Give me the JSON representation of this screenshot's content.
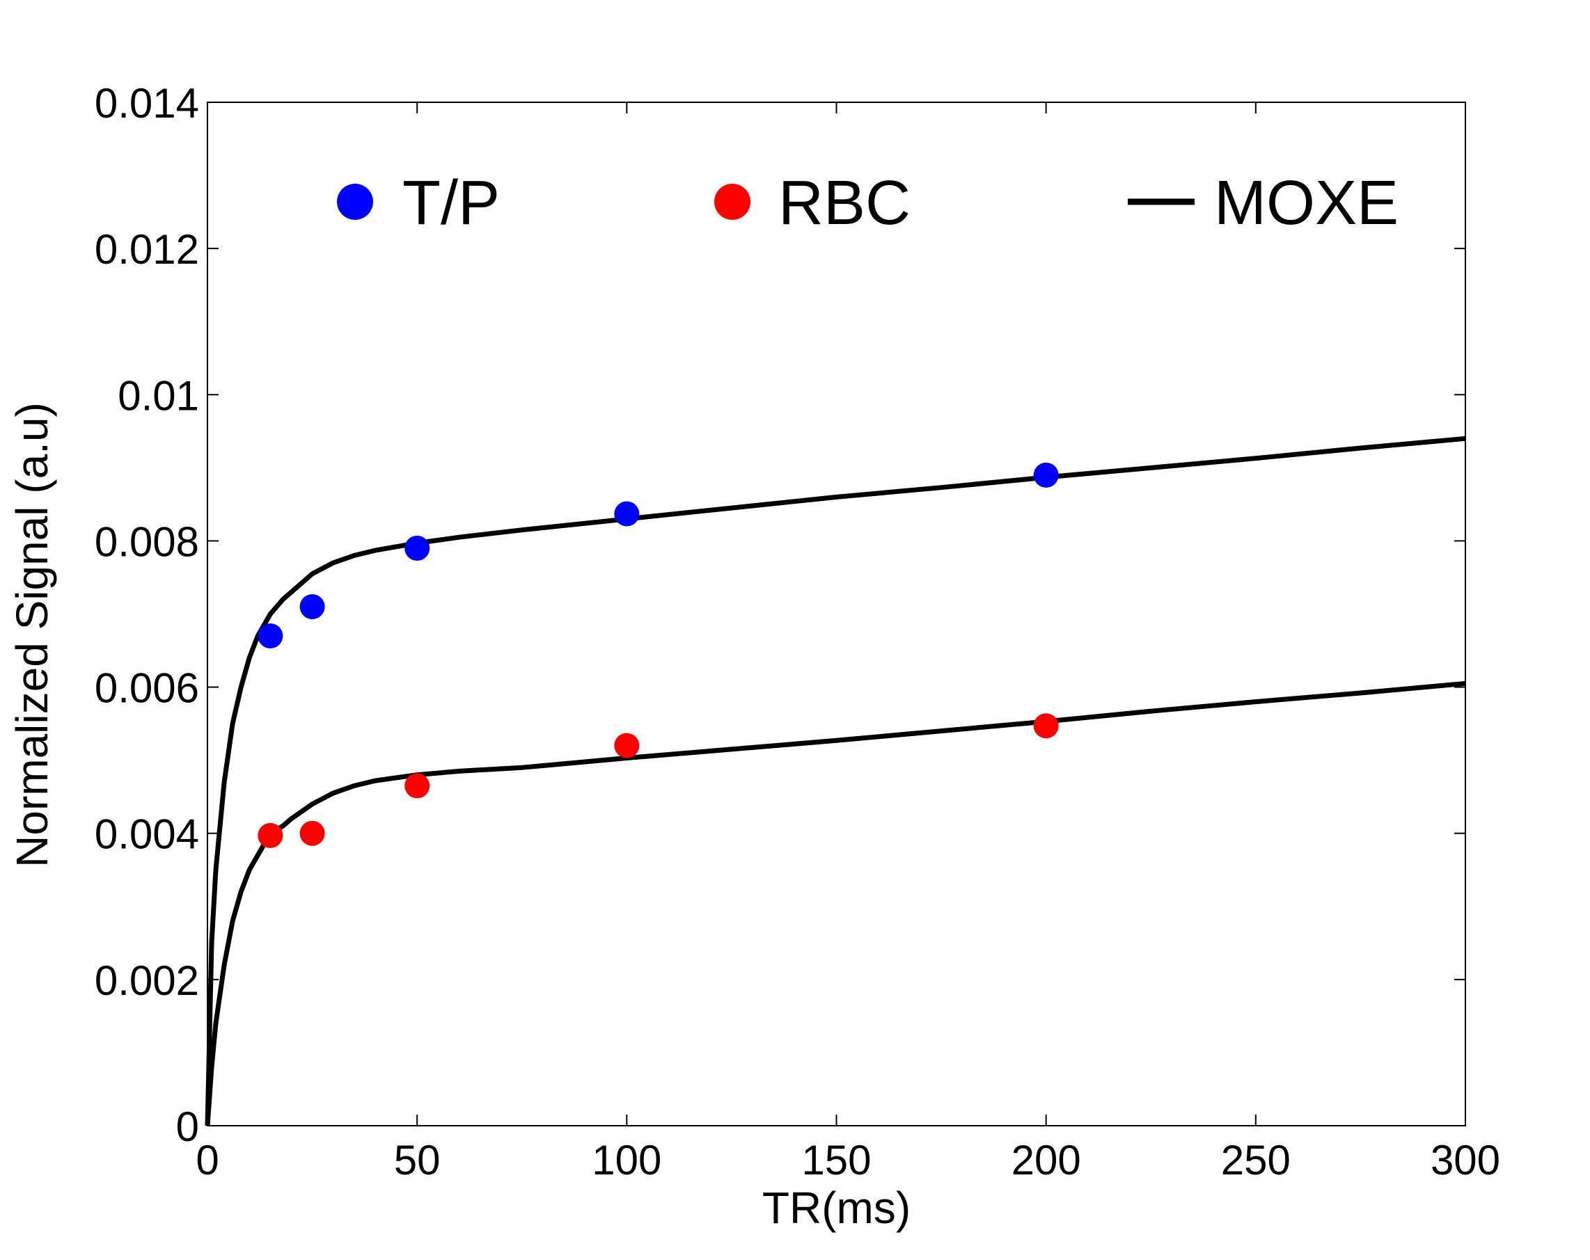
{
  "chart_data": {
    "type": "scatter",
    "xlabel": "TR(ms)",
    "ylabel": "Normalized Signal (a.u)",
    "xlim": [
      0,
      300
    ],
    "ylim": [
      0,
      0.014
    ],
    "x_ticks": [
      0,
      50,
      100,
      150,
      200,
      250,
      300
    ],
    "x_tick_labels": [
      "0",
      "50",
      "100",
      "150",
      "200",
      "250",
      "300"
    ],
    "y_ticks": [
      0,
      0.002,
      0.004,
      0.006,
      0.008,
      0.01,
      0.012,
      0.014
    ],
    "y_tick_labels": [
      "0",
      "0.002",
      "0.004",
      "0.006",
      "0.008",
      "0.01",
      "0.012",
      "0.014"
    ],
    "grid": false,
    "legend_position": "top",
    "series": [
      {
        "name": "T/P",
        "kind": "points",
        "color": "#0000ff",
        "x": [
          15,
          25,
          50,
          100,
          200
        ],
        "y": [
          0.0067,
          0.0071,
          0.0079,
          0.00837,
          0.0089
        ]
      },
      {
        "name": "RBC",
        "kind": "points",
        "color": "#ff0000",
        "x": [
          15,
          25,
          50,
          100,
          200
        ],
        "y": [
          0.00397,
          0.004,
          0.00465,
          0.0052,
          0.00547
        ]
      },
      {
        "name": "MOXE",
        "kind": "line",
        "color": "#000000",
        "curves": [
          {
            "x": [
              0,
              1,
              2,
              4,
              6,
              8,
              10,
              12,
              15,
              18,
              20,
              25,
              30,
              35,
              40,
              45,
              50,
              60,
              75,
              100,
              125,
              150,
              175,
              200,
              225,
              250,
              275,
              300
            ],
            "y": [
              0,
              0.0025,
              0.0035,
              0.0047,
              0.0055,
              0.006,
              0.0064,
              0.0067,
              0.007,
              0.0072,
              0.0073,
              0.00755,
              0.0077,
              0.0078,
              0.00787,
              0.00792,
              0.00797,
              0.00805,
              0.00815,
              0.0083,
              0.00845,
              0.0086,
              0.00873,
              0.00887,
              0.009,
              0.00913,
              0.00927,
              0.0094
            ]
          },
          {
            "x": [
              0,
              1,
              2,
              4,
              6,
              8,
              10,
              12,
              15,
              18,
              20,
              25,
              30,
              35,
              40,
              45,
              50,
              60,
              75,
              100,
              125,
              150,
              175,
              200,
              225,
              250,
              275,
              300
            ],
            "y": [
              0,
              0.0008,
              0.0014,
              0.0022,
              0.0028,
              0.0032,
              0.0035,
              0.0037,
              0.004,
              0.0041,
              0.0042,
              0.0044,
              0.00455,
              0.00465,
              0.00472,
              0.00476,
              0.0048,
              0.00485,
              0.0049,
              0.00503,
              0.00515,
              0.00527,
              0.0054,
              0.00553,
              0.00567,
              0.0058,
              0.00592,
              0.00605
            ]
          }
        ]
      }
    ]
  }
}
